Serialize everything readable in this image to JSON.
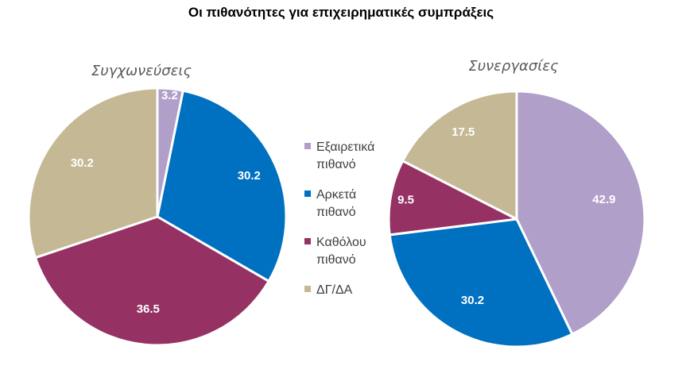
{
  "title": "Οι πιθανότητες για επιχειρηματικές συμπράξεις",
  "legend": {
    "items": [
      {
        "line1": "Εξαιρετικά",
        "line2": "πιθανό",
        "color": "#b09fc9"
      },
      {
        "line1": "Αρκετά",
        "line2": "πιθανό",
        "color": "#0070c0"
      },
      {
        "line1": "Καθόλου",
        "line2": "πιθανό",
        "color": "#953163"
      },
      {
        "line1": "ΔΓ/ΔΑ",
        "line2": "",
        "color": "#c4b994"
      }
    ]
  },
  "chart_data": [
    {
      "type": "pie",
      "title": "Συγχωνεύσεις",
      "categories": [
        "Εξαιρετικά πιθανό",
        "Αρκετά πιθανό",
        "Καθόλου πιθανό",
        "ΔΓ/ΔΑ"
      ],
      "values": [
        3.2,
        30.2,
        36.5,
        30.2
      ],
      "labels": [
        "3.2",
        "30.2",
        "36.5",
        "30.2"
      ],
      "colors": [
        "#b09fc9",
        "#0070c0",
        "#953163",
        "#c4b994"
      ],
      "start": "12 o'clock, clockwise"
    },
    {
      "type": "pie",
      "title": "Συνεργασίες",
      "categories": [
        "Εξαιρετικά πιθανό",
        "Αρκετά πιθανό",
        "Καθόλου πιθανό",
        "ΔΓ/ΔΑ"
      ],
      "values": [
        42.9,
        30.2,
        9.5,
        17.5
      ],
      "labels": [
        "42.9",
        "30.2",
        "9.5",
        "17.5"
      ],
      "colors": [
        "#b09fc9",
        "#0070c0",
        "#953163",
        "#c4b994"
      ],
      "start": "12 o'clock, clockwise"
    }
  ]
}
